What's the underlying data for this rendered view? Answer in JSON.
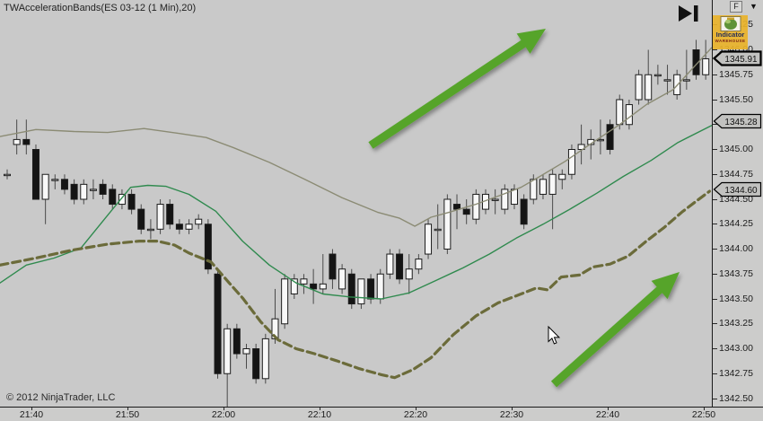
{
  "header": {
    "title": "TWAccelerationBands(ES 03-12 (1 Min),20)"
  },
  "footer": {
    "copyright": "© 2012 NinjaTrader, LLC"
  },
  "toolbar": {
    "f_label": "F",
    "dropdown_glyph": "▼"
  },
  "watermark": {
    "line1": "Indicator",
    "line2": "WAREHOUSE"
  },
  "colors": {
    "chart_bg": "#c9c9c9",
    "axis_bg": "#cccccb",
    "candle_up": "#f8f8f8",
    "candle_down": "#141414",
    "candle_border": "#1c1c1c",
    "wick": "#4a4a4a",
    "upper_band": "#8b8b74",
    "middle_band": "#2f8a4e",
    "lower_band": "#6b6b3a",
    "arrow_green": "#56a42c",
    "marker_fill": "#c2c2c0",
    "watermark_bg": "#e9b32a"
  },
  "price_axis": {
    "labels": [
      "1346.25",
      "1346.00",
      "1345.75",
      "1345.50",
      "1345.25",
      "1345.00",
      "1344.75",
      "1344.50",
      "1344.25",
      "1344.00",
      "1343.75",
      "1343.50",
      "1343.25",
      "1343.00",
      "1342.75",
      "1342.50"
    ],
    "markers": [
      {
        "value": "1345.91",
        "price": 1345.91,
        "role": "last-price",
        "emphasis": true
      },
      {
        "value": "1345.28",
        "price": 1345.28,
        "role": "middle-band-value",
        "emphasis": false
      },
      {
        "value": "1344.60",
        "price": 1344.6,
        "role": "lower-band-value",
        "emphasis": false
      }
    ]
  },
  "time_axis": {
    "labels": [
      "21:40",
      "21:50",
      "22:00",
      "22:10",
      "22:20",
      "22:30",
      "22:40",
      "22:50"
    ]
  },
  "chart_data": {
    "type": "candlestick",
    "instrument": "ES 03-12",
    "interval": "1 Min",
    "indicator": {
      "name": "TWAccelerationBands",
      "period": 20
    },
    "start_time": "21:37",
    "bar_interval_minutes": 1,
    "y_axis": {
      "min": 1342.4,
      "max": 1346.5,
      "tick": 0.25,
      "grid": false
    },
    "candles": [
      [
        1344.75,
        1344.8,
        1344.7,
        1344.75
      ],
      [
        1345.05,
        1345.3,
        1344.95,
        1345.1
      ],
      [
        1345.1,
        1345.3,
        1344.95,
        1345.05
      ],
      [
        1345.0,
        1345.05,
        1344.5,
        1344.5
      ],
      [
        1344.5,
        1344.75,
        1344.25,
        1344.75
      ],
      [
        1344.7,
        1344.75,
        1344.6,
        1344.7
      ],
      [
        1344.7,
        1344.75,
        1344.55,
        1344.6
      ],
      [
        1344.65,
        1344.7,
        1344.45,
        1344.5
      ],
      [
        1344.5,
        1344.7,
        1344.45,
        1344.65
      ],
      [
        1344.6,
        1344.7,
        1344.5,
        1344.6
      ],
      [
        1344.65,
        1344.7,
        1344.5,
        1344.55
      ],
      [
        1344.6,
        1344.65,
        1344.4,
        1344.45
      ],
      [
        1344.45,
        1344.6,
        1344.4,
        1344.55
      ],
      [
        1344.55,
        1344.6,
        1344.35,
        1344.4
      ],
      [
        1344.4,
        1344.45,
        1344.15,
        1344.2
      ],
      [
        1344.2,
        1344.3,
        1344.1,
        1344.2
      ],
      [
        1344.2,
        1344.5,
        1344.15,
        1344.45
      ],
      [
        1344.45,
        1344.5,
        1344.2,
        1344.25
      ],
      [
        1344.25,
        1344.3,
        1344.15,
        1344.2
      ],
      [
        1344.2,
        1344.3,
        1344.15,
        1344.25
      ],
      [
        1344.25,
        1344.35,
        1344.2,
        1344.3
      ],
      [
        1344.25,
        1344.3,
        1343.75,
        1343.8
      ],
      [
        1343.75,
        1343.8,
        1342.7,
        1342.75
      ],
      [
        1342.75,
        1343.25,
        1342.4,
        1343.2
      ],
      [
        1343.2,
        1343.25,
        1342.9,
        1342.95
      ],
      [
        1342.95,
        1343.05,
        1342.8,
        1343.0
      ],
      [
        1343.0,
        1343.05,
        1342.65,
        1342.7
      ],
      [
        1342.7,
        1343.15,
        1342.65,
        1343.1
      ],
      [
        1343.1,
        1343.6,
        1343.05,
        1343.3
      ],
      [
        1343.25,
        1343.75,
        1343.2,
        1343.7
      ],
      [
        1343.55,
        1343.75,
        1343.5,
        1343.7
      ],
      [
        1343.65,
        1343.75,
        1343.55,
        1343.7
      ],
      [
        1343.65,
        1343.8,
        1343.45,
        1343.6
      ],
      [
        1343.6,
        1343.95,
        1343.55,
        1343.65
      ],
      [
        1343.95,
        1344.0,
        1343.6,
        1343.7
      ],
      [
        1343.6,
        1343.85,
        1343.55,
        1343.8
      ],
      [
        1343.75,
        1343.8,
        1343.4,
        1343.45
      ],
      [
        1343.45,
        1343.7,
        1343.4,
        1343.7
      ],
      [
        1343.7,
        1343.75,
        1343.45,
        1343.5
      ],
      [
        1343.5,
        1343.8,
        1343.45,
        1343.75
      ],
      [
        1343.75,
        1344.0,
        1343.7,
        1343.95
      ],
      [
        1343.95,
        1344.0,
        1343.65,
        1343.7
      ],
      [
        1343.7,
        1343.95,
        1343.55,
        1343.8
      ],
      [
        1343.8,
        1343.95,
        1343.75,
        1343.9
      ],
      [
        1343.95,
        1344.3,
        1343.9,
        1344.25
      ],
      [
        1344.2,
        1344.45,
        1344.0,
        1344.2
      ],
      [
        1344.0,
        1344.55,
        1343.95,
        1344.5
      ],
      [
        1344.45,
        1344.55,
        1344.2,
        1344.4
      ],
      [
        1344.4,
        1344.5,
        1344.25,
        1344.35
      ],
      [
        1344.3,
        1344.6,
        1344.25,
        1344.55
      ],
      [
        1344.4,
        1344.6,
        1344.35,
        1344.55
      ],
      [
        1344.5,
        1344.6,
        1344.35,
        1344.5
      ],
      [
        1344.4,
        1344.65,
        1344.35,
        1344.6
      ],
      [
        1344.45,
        1344.65,
        1344.4,
        1344.6
      ],
      [
        1344.5,
        1344.55,
        1344.2,
        1344.25
      ],
      [
        1344.5,
        1344.75,
        1344.45,
        1344.7
      ],
      [
        1344.55,
        1344.75,
        1344.5,
        1344.7
      ],
      [
        1344.55,
        1344.8,
        1344.2,
        1344.75
      ],
      [
        1344.7,
        1344.8,
        1344.6,
        1344.75
      ],
      [
        1344.75,
        1345.05,
        1344.7,
        1345.0
      ],
      [
        1345.0,
        1345.25,
        1344.85,
        1345.05
      ],
      [
        1345.05,
        1345.2,
        1344.9,
        1345.1
      ],
      [
        1345.1,
        1345.3,
        1344.95,
        1345.1
      ],
      [
        1345.25,
        1345.3,
        1344.95,
        1345.0
      ],
      [
        1345.25,
        1345.55,
        1345.2,
        1345.5
      ],
      [
        1345.25,
        1345.5,
        1345.2,
        1345.45
      ],
      [
        1345.5,
        1345.8,
        1345.45,
        1345.75
      ],
      [
        1345.5,
        1346.0,
        1345.45,
        1345.75
      ],
      [
        1345.75,
        1345.85,
        1345.65,
        1345.75
      ],
      [
        1345.7,
        1345.85,
        1345.55,
        1345.7
      ],
      [
        1345.55,
        1345.8,
        1345.5,
        1345.75
      ],
      [
        1345.7,
        1346.0,
        1345.6,
        1345.7
      ],
      [
        1346.0,
        1346.1,
        1345.7,
        1345.75
      ],
      [
        1345.75,
        1346.1,
        1345.7,
        1345.91
      ]
    ],
    "bands": {
      "upper": {
        "name": "Upper Acceleration Band",
        "style": "solid",
        "points": [
          [
            -0.75,
            1345.13
          ],
          [
            3,
            1345.2
          ],
          [
            7,
            1345.18
          ],
          [
            10.5,
            1345.17
          ],
          [
            14.3,
            1345.21
          ],
          [
            18,
            1345.16
          ],
          [
            20.8,
            1345.12
          ],
          [
            23.6,
            1345.02
          ],
          [
            27.4,
            1344.87
          ],
          [
            31.1,
            1344.7
          ],
          [
            34.9,
            1344.52
          ],
          [
            38.7,
            1344.37
          ],
          [
            41,
            1344.31
          ],
          [
            42.6,
            1344.23
          ],
          [
            44.3,
            1344.32
          ],
          [
            46.2,
            1344.37
          ],
          [
            49,
            1344.45
          ],
          [
            51.8,
            1344.55
          ],
          [
            53.7,
            1344.62
          ],
          [
            55.5,
            1344.72
          ],
          [
            58.3,
            1344.88
          ],
          [
            61.2,
            1345.07
          ],
          [
            64,
            1345.25
          ],
          [
            66.8,
            1345.45
          ],
          [
            69.6,
            1345.6
          ],
          [
            71.5,
            1345.8
          ],
          [
            73.6,
            1346.02
          ]
        ]
      },
      "middle": {
        "name": "Midline",
        "style": "solid",
        "points": [
          [
            -0.75,
            1343.66
          ],
          [
            2,
            1343.84
          ],
          [
            4.9,
            1343.91
          ],
          [
            7.7,
            1344.01
          ],
          [
            10.5,
            1344.34
          ],
          [
            12.9,
            1344.62
          ],
          [
            14.7,
            1344.64
          ],
          [
            16.6,
            1344.63
          ],
          [
            19,
            1344.55
          ],
          [
            21.8,
            1344.38
          ],
          [
            24.6,
            1344.08
          ],
          [
            27.4,
            1343.84
          ],
          [
            30.2,
            1343.66
          ],
          [
            33,
            1343.55
          ],
          [
            35.8,
            1343.52
          ],
          [
            39.1,
            1343.5
          ],
          [
            42,
            1343.56
          ],
          [
            44.7,
            1343.68
          ],
          [
            47.6,
            1343.81
          ],
          [
            50.4,
            1343.95
          ],
          [
            53.2,
            1344.11
          ],
          [
            56,
            1344.25
          ],
          [
            58.8,
            1344.4
          ],
          [
            61.6,
            1344.56
          ],
          [
            64.4,
            1344.73
          ],
          [
            67.3,
            1344.89
          ],
          [
            70.1,
            1345.07
          ],
          [
            73.6,
            1345.24
          ]
        ]
      },
      "lower": {
        "name": "Lower Acceleration Band",
        "style": "dashed",
        "points": [
          [
            -0.75,
            1343.84
          ],
          [
            3,
            1343.91
          ],
          [
            6.8,
            1343.99
          ],
          [
            10.5,
            1344.05
          ],
          [
            13.8,
            1344.08
          ],
          [
            15.7,
            1344.08
          ],
          [
            17.5,
            1344.04
          ],
          [
            19,
            1343.96
          ],
          [
            21.3,
            1343.87
          ],
          [
            23.2,
            1343.66
          ],
          [
            24.6,
            1343.51
          ],
          [
            26.5,
            1343.27
          ],
          [
            28.3,
            1343.09
          ],
          [
            30.2,
            1343.0
          ],
          [
            32.1,
            1342.95
          ],
          [
            34.4,
            1342.88
          ],
          [
            36.8,
            1342.8
          ],
          [
            39.1,
            1342.74
          ],
          [
            40.5,
            1342.71
          ],
          [
            42.4,
            1342.79
          ],
          [
            44.3,
            1342.91
          ],
          [
            46.6,
            1343.14
          ],
          [
            49,
            1343.33
          ],
          [
            51.3,
            1343.46
          ],
          [
            53.7,
            1343.55
          ],
          [
            55.3,
            1343.61
          ],
          [
            56.5,
            1343.59
          ],
          [
            57.9,
            1343.72
          ],
          [
            59.8,
            1343.74
          ],
          [
            61.2,
            1343.82
          ],
          [
            63,
            1343.85
          ],
          [
            64.9,
            1343.93
          ],
          [
            66.8,
            1344.08
          ],
          [
            68.7,
            1344.22
          ],
          [
            70.5,
            1344.37
          ],
          [
            72,
            1344.48
          ],
          [
            73.4,
            1344.58
          ]
        ]
      }
    },
    "annotations": {
      "arrows": [
        {
          "from": [
            413,
            162
          ],
          "to": [
            608,
            32
          ]
        },
        {
          "from": [
            617,
            428
          ],
          "to": [
            757,
            303
          ]
        }
      ],
      "cursor": [
        611,
        364
      ]
    }
  }
}
